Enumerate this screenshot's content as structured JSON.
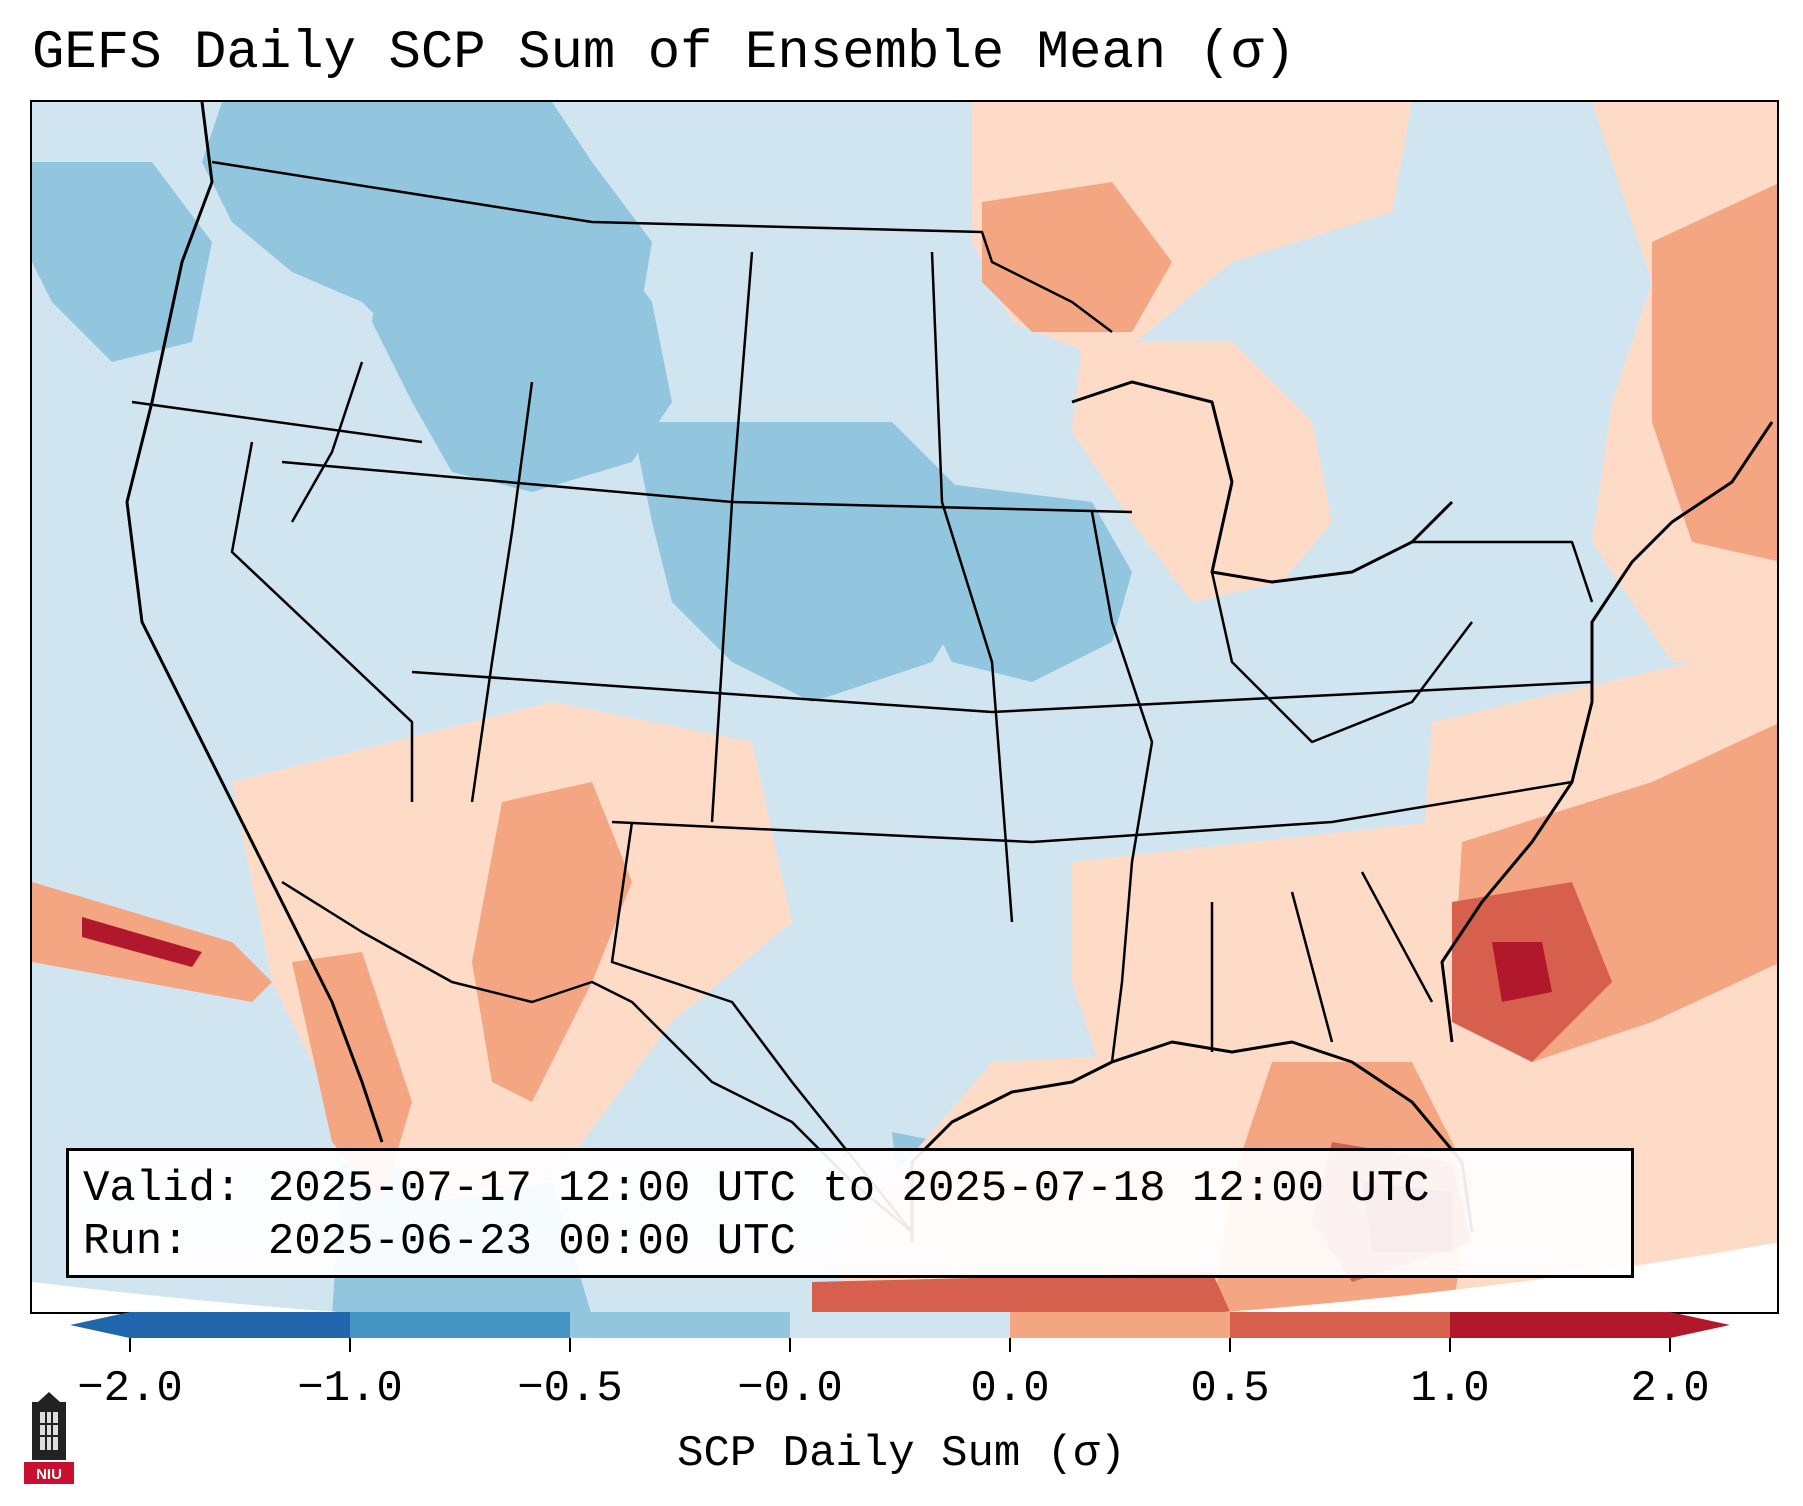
{
  "title": "GEFS Daily SCP Sum of Ensemble Mean (σ)",
  "info": {
    "valid_label": "Valid:",
    "valid_value": "2025-07-17 12:00 UTC to 2025-07-18 12:00 UTC",
    "run_label": "Run:",
    "run_value": "2025-06-23 00:00 UTC"
  },
  "colorbar": {
    "label": "SCP Daily Sum (σ)",
    "ticks": [
      "−2.0",
      "−1.0",
      "−0.5",
      "−0.0",
      "0.0",
      "0.5",
      "1.0",
      "2.0"
    ],
    "colors": [
      "#2166ac",
      "#4393c3",
      "#92c5de",
      "#d1e5f0",
      "#fddbc7",
      "#f4a582",
      "#d6604d",
      "#b2182b"
    ],
    "extend": "both"
  },
  "logo": {
    "text": "NIU"
  },
  "map": {
    "projection": "Lambert Conformal, CONUS",
    "background_color": "#d1e5f0",
    "anomaly_colors": {
      "strong_negative": "#4393c3",
      "moderate_negative": "#92c5de",
      "weak_negative": "#d1e5f0",
      "weak_positive": "#fddbc7",
      "moderate_positive": "#f4a582",
      "strong_positive": "#d6604d",
      "very_strong_positive": "#b2182b"
    }
  }
}
